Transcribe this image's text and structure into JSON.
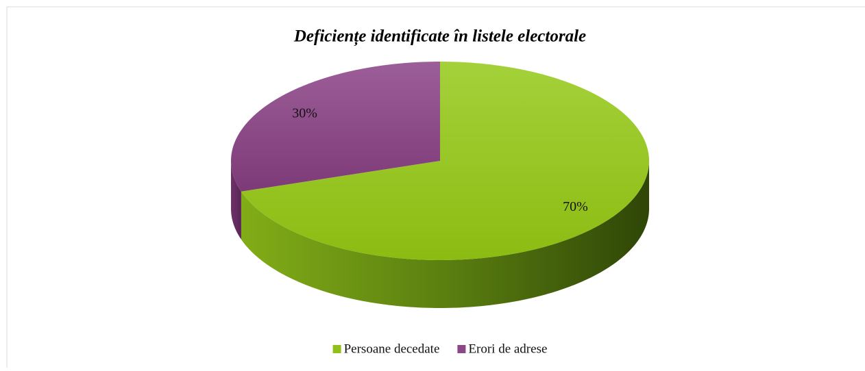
{
  "chart_data": {
    "type": "pie",
    "title": "Deficiențe identificate în listele electorale",
    "categories": [
      "Persoane decedate",
      "Erori de adrese"
    ],
    "values": [
      70,
      30
    ],
    "value_labels": [
      "70%",
      "30%"
    ],
    "colors": [
      "#92c01a",
      "#8b4786"
    ],
    "legend": "bottom"
  }
}
